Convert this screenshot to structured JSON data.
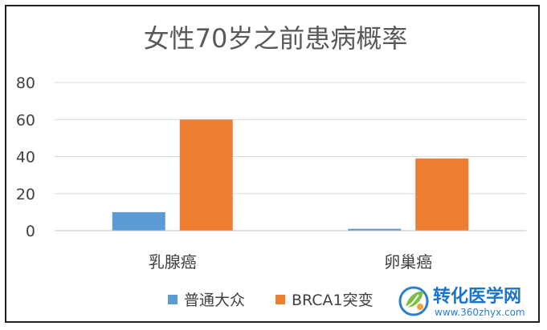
{
  "chart_data": {
    "type": "bar",
    "title": "女性70岁之前患病概率",
    "categories": [
      "乳腺癌",
      "卵巢癌"
    ],
    "series": [
      {
        "name": "普通大众",
        "values": [
          10,
          1
        ],
        "color": "#5b9bd5"
      },
      {
        "name": "BRCA1突变",
        "values": [
          60,
          39
        ],
        "color": "#ed7d31"
      }
    ],
    "ylim": [
      0,
      80
    ],
    "yticks": [
      0,
      20,
      40,
      60,
      80
    ],
    "grid": true,
    "legend": "bottom"
  },
  "watermark": {
    "main": "转化医学网",
    "sub": "www.360zhyx.com",
    "icon": "leaf-logo-icon",
    "colors": {
      "blue": "#1b74c7",
      "green": "#7cc242",
      "orange": "#f2a23a"
    }
  }
}
